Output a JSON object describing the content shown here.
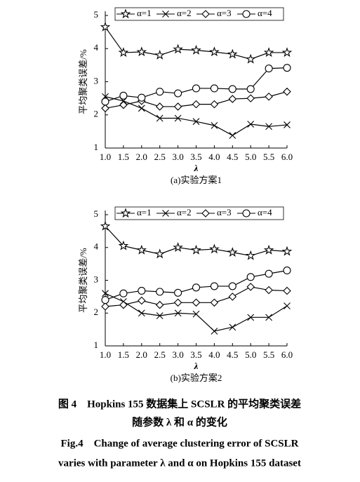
{
  "chart_data": [
    {
      "type": "line",
      "subtitle": "(a)实验方案1",
      "x_label": "λ",
      "y_label": "平均聚类误差/%",
      "x": [
        1.0,
        1.5,
        2.0,
        2.5,
        3.0,
        3.5,
        4.0,
        4.5,
        5.0,
        5.5,
        6.0
      ],
      "xlim": [
        1.0,
        6.0
      ],
      "xticks": [
        {
          "value": 1,
          "label": "1.0"
        },
        {
          "value": 1.5,
          "label": "1.5"
        },
        {
          "value": 2,
          "label": "2.0"
        },
        {
          "value": 2.5,
          "label": "2.5"
        },
        {
          "value": 3,
          "label": "3.0"
        },
        {
          "value": 3.5,
          "label": "3.5"
        },
        {
          "value": 4,
          "label": "4.0"
        },
        {
          "value": 4.5,
          "label": "4.5"
        },
        {
          "value": 5,
          "label": "5.0"
        },
        {
          "value": 5.5,
          "label": "5.5"
        },
        {
          "value": 6,
          "label": "6.0"
        }
      ],
      "ylim": [
        1,
        5
      ],
      "yticks": [
        1,
        2,
        3,
        4,
        5
      ],
      "legend": "top",
      "series": [
        {
          "name": "α=1",
          "color": "#000000",
          "marker": "star",
          "values": [
            4.65,
            3.88,
            3.9,
            3.8,
            3.98,
            3.95,
            3.9,
            3.83,
            3.68,
            3.88,
            3.88
          ]
        },
        {
          "name": "α=2",
          "color": "#000000",
          "marker": "x",
          "values": [
            2.55,
            2.42,
            2.2,
            1.9,
            1.9,
            1.8,
            1.68,
            1.38,
            1.72,
            1.65,
            1.7
          ]
        },
        {
          "name": "α=3",
          "color": "#000000",
          "marker": "diamond",
          "values": [
            2.2,
            2.3,
            2.42,
            2.25,
            2.25,
            2.32,
            2.32,
            2.48,
            2.5,
            2.55,
            2.7
          ]
        },
        {
          "name": "α=4",
          "color": "#000000",
          "marker": "circle",
          "values": [
            2.4,
            2.58,
            2.52,
            2.7,
            2.65,
            2.8,
            2.8,
            2.78,
            2.78,
            3.4,
            3.42
          ]
        }
      ]
    },
    {
      "type": "line",
      "subtitle": "(b)实验方案2",
      "x_label": "λ",
      "y_label": "平均聚类误差/%",
      "x": [
        1.0,
        1.5,
        2.0,
        2.5,
        3.0,
        3.5,
        4.0,
        4.5,
        5.0,
        5.5,
        6.0
      ],
      "xlim": [
        1.0,
        6.0
      ],
      "xticks": [
        {
          "value": 1,
          "label": "1.0"
        },
        {
          "value": 1.5,
          "label": "1.5"
        },
        {
          "value": 2,
          "label": "2.0"
        },
        {
          "value": 2.5,
          "label": "2.5"
        },
        {
          "value": 3,
          "label": "3.0"
        },
        {
          "value": 3.5,
          "label": "3.5"
        },
        {
          "value": 4,
          "label": "4.0"
        },
        {
          "value": 4.5,
          "label": "4.5"
        },
        {
          "value": 5,
          "label": "5.0"
        },
        {
          "value": 5.5,
          "label": "5.5"
        },
        {
          "value": 6,
          "label": "6.0"
        }
      ],
      "ylim": [
        1,
        5
      ],
      "yticks": [
        1,
        2,
        3,
        4,
        5
      ],
      "legend": "top",
      "series": [
        {
          "name": "α=1",
          "color": "#000000",
          "marker": "star",
          "values": [
            4.65,
            4.05,
            3.92,
            3.8,
            4.0,
            3.92,
            3.95,
            3.85,
            3.75,
            3.92,
            3.88
          ]
        },
        {
          "name": "α=2",
          "color": "#000000",
          "marker": "x",
          "values": [
            2.6,
            2.35,
            2.0,
            1.92,
            2.0,
            1.97,
            1.45,
            1.57,
            1.87,
            1.87,
            2.22
          ]
        },
        {
          "name": "α=3",
          "color": "#000000",
          "marker": "diamond",
          "values": [
            2.2,
            2.25,
            2.38,
            2.25,
            2.32,
            2.32,
            2.32,
            2.5,
            2.8,
            2.7,
            2.68
          ]
        },
        {
          "name": "α=4",
          "color": "#000000",
          "marker": "circle",
          "values": [
            2.4,
            2.6,
            2.68,
            2.65,
            2.62,
            2.78,
            2.82,
            2.82,
            3.1,
            3.2,
            3.3
          ]
        }
      ]
    }
  ],
  "caption": {
    "cn_line1": "图 4　Hopkins 155 数据集上 SCSLR 的平均聚类误差",
    "cn_line2": "随参数 λ 和 α 的变化",
    "en_line1": "Fig.4　Change of average clustering error of SCSLR",
    "en_line2": "varies with parameter λ and α on Hopkins 155 dataset"
  }
}
